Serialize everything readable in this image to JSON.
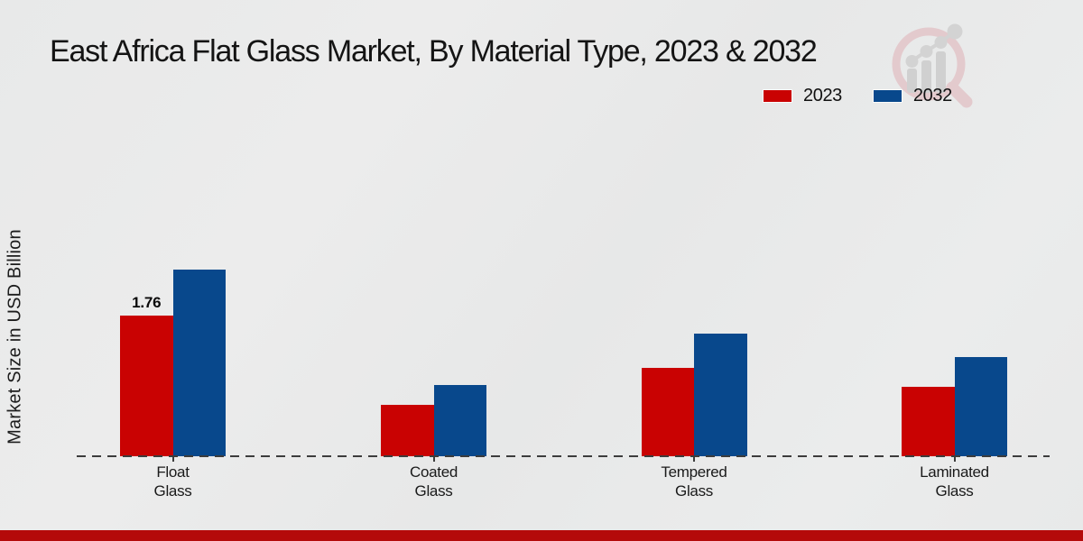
{
  "title": "East Africa Flat Glass Market, By Material Type, 2023 & 2032",
  "ylabel": "Market Size in USD Billion",
  "legend": {
    "items": [
      {
        "label": "2023",
        "color": "#c90202"
      },
      {
        "label": "2032",
        "color": "#08488c"
      }
    ]
  },
  "colors": {
    "red_series": "#c90202",
    "blue_series": "#08488c",
    "bottom_band": "#b40a0a",
    "baseline": "#3c3c3c",
    "background": "#e9eaea",
    "watermark_ring": "#e3c9cc",
    "watermark_bars": "#cfcfcf"
  },
  "watermark": {
    "name": "market-research-magnifier-logo"
  },
  "chart_data": {
    "type": "bar",
    "categories": [
      "Float Glass",
      "Coated Glass",
      "Tempered Glass",
      "Laminated Glass"
    ],
    "series": [
      {
        "name": "2023",
        "color": "#c90202",
        "values": [
          1.76,
          0.64,
          1.11,
          0.87
        ]
      },
      {
        "name": "2032",
        "color": "#08488c",
        "values": [
          2.34,
          0.89,
          1.54,
          1.24
        ]
      }
    ],
    "annotations": [
      {
        "series": "2023",
        "category": "Float Glass",
        "text": "1.76"
      }
    ],
    "title": "East Africa Flat Glass Market, By Material Type, 2023 & 2032",
    "xlabel": "",
    "ylabel": "Market Size in USD Billion",
    "ylim": [
      0,
      2.6
    ],
    "grid": false,
    "y_ticks_visible": false,
    "baseline_style": "dashed",
    "legend_position": "top-right"
  }
}
